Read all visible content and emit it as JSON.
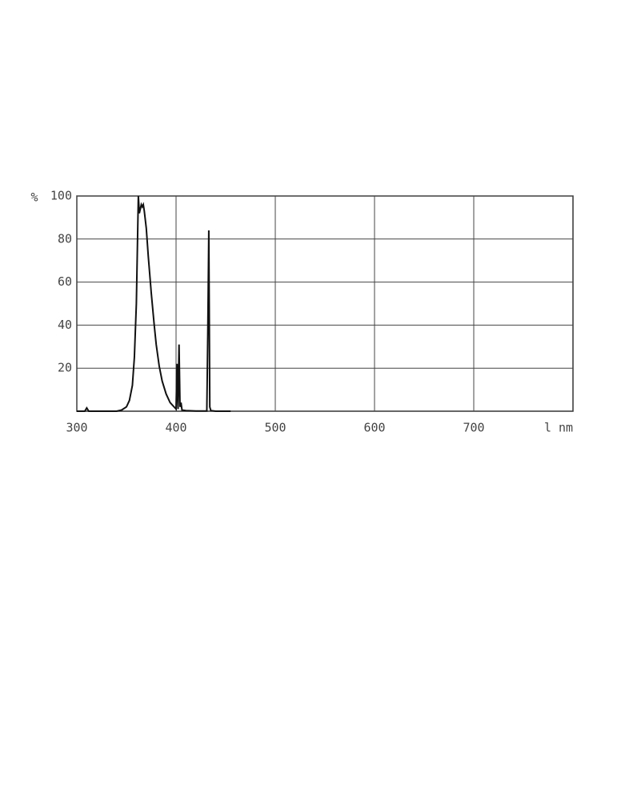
{
  "chart_data": {
    "type": "line",
    "y_label": "%",
    "x_label": "l nm",
    "xlim": [
      300,
      800
    ],
    "xticks": [
      300,
      400,
      500,
      600,
      700
    ],
    "ylim": [
      0,
      100
    ],
    "yticks": [
      20,
      40,
      60,
      80,
      100
    ],
    "grid": true,
    "x": [
      300,
      308,
      310,
      312,
      340,
      345,
      350,
      353,
      356,
      358,
      360,
      361,
      362,
      363,
      364,
      365,
      366,
      367,
      368,
      370,
      372,
      375,
      378,
      380,
      383,
      386,
      390,
      394,
      398,
      400,
      401,
      402,
      403,
      404,
      405,
      406,
      410,
      420,
      431,
      432,
      433,
      434,
      435,
      440,
      455
    ],
    "series": [
      {
        "color": "#111",
        "values": [
          0,
          0,
          1.5,
          0,
          0,
          0.5,
          2,
          5,
          12,
          25,
          50,
          75,
          100,
          92,
          94,
          96,
          95,
          96,
          93,
          85,
          72,
          55,
          40,
          31,
          21,
          14,
          8,
          4,
          2,
          1,
          22,
          1,
          31,
          2,
          4,
          0.5,
          0.3,
          0.1,
          0.1,
          37,
          84,
          2,
          0.3,
          0,
          0
        ]
      }
    ]
  }
}
